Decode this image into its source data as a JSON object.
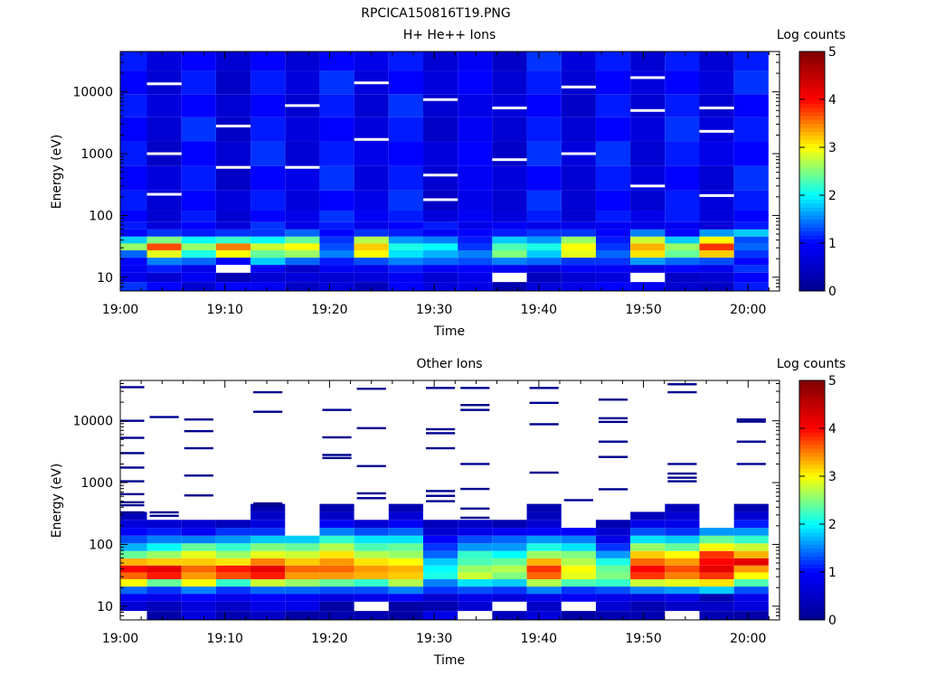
{
  "figure_title": "RPCICA150816T19.PNG",
  "colormap": [
    "#00008f",
    "#0000ff",
    "#00ffff",
    "#ffff00",
    "#ff0000",
    "#800000"
  ],
  "chart_data": [
    {
      "type": "heatmap",
      "title": "H+ He++ Ions",
      "xlabel": "Time",
      "ylabel": "Energy (eV)",
      "colorbar_label": "Log counts",
      "colorbar_ticks": [
        "0",
        "1",
        "2",
        "3",
        "4",
        "5"
      ],
      "clim": [
        0,
        5
      ],
      "x_ticks": [
        "19:00",
        "19:10",
        "19:20",
        "19:30",
        "19:40",
        "19:50",
        "20:00"
      ],
      "x_range_minutes": [
        0,
        63
      ],
      "y_scale": "log",
      "y_range_eV": [
        6,
        45000
      ],
      "y_ticks": [
        "10",
        "100",
        "1000",
        "10000"
      ],
      "time_columns_minutes": [
        0.9,
        4.2,
        7.5,
        10.8,
        14.1,
        17.4,
        20.7,
        24.0,
        27.3,
        30.6,
        33.9,
        37.2,
        40.5,
        43.8,
        47.1,
        50.4,
        53.7,
        57.0,
        60.3
      ],
      "energy_bins_eV": [
        7,
        10,
        14,
        18,
        24,
        31,
        40,
        52,
        68,
        90,
        160,
        400,
        1000,
        2500,
        6000,
        14000,
        35000
      ],
      "log_counts": [
        [
          1.2,
          1.0,
          0.6,
          1.0,
          0.9,
          0.5,
          0.7,
          0.4,
          1.0,
          0.7,
          0.8,
          0.3,
          0.7,
          0.8,
          1.0,
          0.9,
          0.6,
          0.5,
          1.1
        ],
        [
          0.8,
          0.6,
          0.9,
          0.3,
          0.6,
          0.7,
          0.6,
          0.7,
          0.9,
          0.6,
          0.8,
          null,
          0.4,
          0.6,
          0.7,
          null,
          0.5,
          0.6,
          1.0
        ],
        [
          0.9,
          1.1,
          0.8,
          null,
          0.9,
          0.5,
          0.9,
          0.8,
          1.1,
          0.9,
          1.0,
          0.9,
          0.7,
          0.9,
          0.9,
          0.8,
          1.0,
          0.8,
          1.2
        ],
        [
          1.0,
          1.5,
          1.4,
          1.0,
          1.8,
          1.4,
          1.1,
          1.3,
          1.5,
          1.4,
          1.3,
          1.5,
          1.4,
          1.2,
          1.2,
          1.6,
          1.4,
          1.3,
          1.0
        ],
        [
          1.4,
          2.9,
          2.1,
          3.0,
          2.4,
          2.6,
          1.5,
          3.0,
          1.9,
          1.7,
          1.5,
          2.5,
          1.8,
          2.9,
          1.4,
          3.1,
          2.4,
          3.2,
          1.2
        ],
        [
          2.6,
          3.7,
          2.6,
          3.5,
          2.8,
          3.0,
          1.3,
          3.2,
          2.1,
          2.0,
          1.2,
          2.3,
          2.1,
          3.0,
          1.2,
          3.3,
          2.6,
          3.8,
          1.4
        ],
        [
          1.8,
          2.5,
          2.0,
          2.2,
          2.0,
          2.4,
          1.2,
          2.7,
          1.6,
          1.5,
          1.1,
          1.8,
          1.6,
          2.6,
          1.1,
          2.8,
          1.8,
          3.0,
          1.3
        ],
        [
          1.0,
          1.2,
          1.1,
          1.2,
          1.2,
          1.4,
          1.0,
          1.2,
          1.1,
          0.9,
          1.0,
          1.1,
          1.2,
          1.2,
          1.0,
          1.5,
          1.0,
          1.6,
          1.8
        ],
        [
          1.1,
          0.7,
          1.0,
          0.7,
          1.2,
          0.8,
          1.1,
          0.8,
          1.0,
          1.1,
          0.8,
          0.9,
          0.8,
          0.8,
          0.9,
          0.8,
          0.9,
          0.7,
          1.1
        ],
        [
          1.0,
          0.6,
          1.1,
          0.6,
          1.0,
          0.8,
          1.2,
          0.9,
          1.1,
          0.7,
          0.9,
          0.7,
          1.1,
          0.6,
          1.1,
          0.8,
          1.1,
          0.7,
          1.0
        ],
        [
          1.1,
          0.6,
          1.0,
          0.7,
          1.1,
          0.7,
          1.0,
          0.8,
          1.2,
          0.5,
          0.8,
          0.6,
          1.2,
          0.6,
          1.0,
          0.6,
          1.1,
          0.7,
          1.1
        ],
        [
          1.0,
          0.7,
          1.1,
          0.5,
          1.0,
          0.8,
          1.2,
          0.7,
          1.1,
          0.6,
          0.9,
          0.7,
          1.0,
          0.6,
          1.1,
          0.7,
          1.0,
          0.6,
          1.2
        ],
        [
          1.1,
          0.5,
          1.0,
          0.6,
          1.2,
          0.6,
          1.1,
          0.8,
          1.0,
          0.7,
          1.0,
          0.5,
          1.2,
          0.7,
          1.2,
          0.6,
          1.1,
          0.8,
          1.0
        ],
        [
          1.0,
          0.6,
          1.2,
          0.5,
          1.1,
          0.7,
          1.0,
          0.7,
          1.1,
          0.5,
          0.9,
          0.6,
          1.1,
          0.6,
          1.0,
          0.7,
          1.2,
          0.7,
          1.1
        ],
        [
          1.1,
          0.7,
          1.0,
          0.6,
          1.0,
          0.6,
          1.1,
          0.6,
          1.2,
          0.6,
          0.8,
          0.7,
          1.0,
          0.5,
          1.1,
          0.6,
          1.1,
          0.6,
          1.0
        ],
        [
          1.0,
          0.6,
          1.1,
          0.5,
          1.1,
          0.7,
          1.2,
          0.7,
          1.0,
          0.7,
          1.0,
          0.6,
          1.1,
          0.6,
          1.0,
          0.7,
          1.0,
          0.7,
          1.2
        ],
        [
          1.1,
          0.7,
          1.0,
          0.6,
          1.0,
          0.6,
          1.0,
          0.8,
          1.1,
          0.6,
          0.9,
          0.5,
          1.2,
          0.7,
          1.1,
          0.6,
          1.1,
          0.6,
          1.1
        ]
      ],
      "white_gaps": [
        {
          "col": 1,
          "energy_eV": 1000
        },
        {
          "col": 1,
          "energy_eV": 13500
        },
        {
          "col": 1,
          "energy_eV": 220
        },
        {
          "col": 3,
          "energy_eV": 2800
        },
        {
          "col": 3,
          "energy_eV": 600
        },
        {
          "col": 5,
          "energy_eV": 6000
        },
        {
          "col": 5,
          "energy_eV": 600
        },
        {
          "col": 7,
          "energy_eV": 1700
        },
        {
          "col": 7,
          "energy_eV": 14000
        },
        {
          "col": 9,
          "energy_eV": 7500
        },
        {
          "col": 9,
          "energy_eV": 450
        },
        {
          "col": 9,
          "energy_eV": 180
        },
        {
          "col": 11,
          "energy_eV": 5500
        },
        {
          "col": 11,
          "energy_eV": 800
        },
        {
          "col": 13,
          "energy_eV": 12000
        },
        {
          "col": 13,
          "energy_eV": 1000
        },
        {
          "col": 15,
          "energy_eV": 17000
        },
        {
          "col": 15,
          "energy_eV": 5000
        },
        {
          "col": 15,
          "energy_eV": 300
        },
        {
          "col": 17,
          "energy_eV": 5500
        },
        {
          "col": 17,
          "energy_eV": 2300
        },
        {
          "col": 17,
          "energy_eV": 210
        }
      ]
    },
    {
      "type": "heatmap",
      "title": "Other Ions",
      "xlabel": "Time",
      "ylabel": "Energy (eV)",
      "colorbar_label": "Log counts",
      "colorbar_ticks": [
        "0",
        "1",
        "2",
        "3",
        "4",
        "5"
      ],
      "clim": [
        0,
        5
      ],
      "x_ticks": [
        "19:00",
        "19:10",
        "19:20",
        "19:30",
        "19:40",
        "19:50",
        "20:00"
      ],
      "x_range_minutes": [
        0,
        63
      ],
      "y_scale": "log",
      "y_range_eV": [
        6,
        45000
      ],
      "y_ticks": [
        "10",
        "100",
        "1000",
        "10000"
      ],
      "time_columns_minutes": [
        0.9,
        4.2,
        7.5,
        10.8,
        14.1,
        17.4,
        20.7,
        24.0,
        27.3,
        30.6,
        33.9,
        37.2,
        40.5,
        43.8,
        47.1,
        50.4,
        53.7,
        57.0,
        60.3
      ],
      "energy_bins_eV": [
        7,
        10,
        14,
        18,
        24,
        31,
        40,
        52,
        68,
        90,
        120,
        160,
        215,
        290,
        390
      ],
      "log_counts": [
        [
          null,
          0.2,
          0.7,
          0.3,
          0.5,
          0.2,
          0.3,
          0.3,
          0.2,
          0.8,
          null,
          0.4,
          0.7,
          0.2,
          0.3,
          0.3,
          null,
          0.3,
          0.2
        ],
        [
          0.6,
          0.4,
          0.7,
          0.5,
          0.8,
          0.8,
          0.2,
          null,
          0.2,
          0.3,
          0.6,
          null,
          0.5,
          null,
          0.6,
          0.3,
          0.5,
          0.5,
          0.7
        ],
        [
          0.9,
          0.8,
          1.0,
          0.8,
          1.0,
          0.9,
          0.7,
          0.8,
          0.9,
          0.6,
          0.8,
          0.7,
          0.8,
          0.9,
          0.8,
          0.7,
          0.8,
          0.3,
          0.8
        ],
        [
          1.4,
          1.2,
          1.5,
          1.2,
          1.4,
          1.4,
          1.3,
          1.3,
          1.5,
          1.2,
          1.3,
          1.2,
          1.5,
          1.2,
          1.3,
          1.5,
          1.6,
          1.8,
          1.3
        ],
        [
          3.0,
          2.4,
          3.0,
          2.2,
          2.8,
          2.6,
          2.4,
          2.2,
          2.7,
          1.5,
          1.9,
          1.8,
          2.7,
          2.3,
          2.2,
          2.8,
          2.9,
          3.1,
          2.3
        ],
        [
          3.6,
          3.9,
          3.4,
          3.7,
          3.9,
          3.4,
          3.4,
          3.3,
          3.2,
          2.1,
          2.8,
          2.5,
          3.6,
          2.9,
          2.5,
          3.8,
          3.5,
          3.8,
          3.0
        ],
        [
          4.0,
          4.2,
          3.6,
          3.9,
          4.2,
          3.6,
          3.6,
          3.4,
          3.3,
          2.0,
          2.6,
          2.7,
          3.8,
          3.0,
          2.4,
          4.0,
          3.7,
          4.2,
          3.4
        ],
        [
          3.3,
          3.2,
          3.2,
          3.1,
          3.5,
          3.2,
          3.4,
          3.1,
          3.0,
          1.8,
          2.3,
          2.4,
          3.3,
          2.7,
          2.1,
          3.6,
          3.4,
          4.0,
          4.2
        ],
        [
          2.4,
          2.6,
          2.9,
          2.6,
          2.9,
          2.8,
          3.1,
          2.7,
          2.6,
          1.4,
          2.2,
          2.0,
          2.6,
          2.5,
          1.6,
          3.2,
          3.0,
          3.8,
          3.3
        ],
        [
          1.7,
          2.0,
          2.4,
          2.2,
          2.5,
          2.4,
          2.7,
          2.3,
          2.4,
          1.2,
          1.6,
          1.6,
          2.1,
          1.9,
          1.2,
          2.6,
          2.4,
          3.0,
          2.8
        ],
        [
          1.3,
          1.5,
          1.5,
          1.6,
          1.8,
          1.8,
          2.2,
          1.9,
          1.9,
          1.0,
          1.3,
          1.4,
          1.6,
          1.5,
          0.8,
          1.9,
          1.8,
          2.4,
          2.2
        ],
        [
          1.0,
          1.1,
          0.9,
          1.2,
          1.2,
          null,
          1.5,
          1.3,
          1.4,
          0.6,
          0.8,
          0.9,
          1.0,
          1.0,
          0.6,
          1.3,
          1.2,
          1.6,
          1.6
        ],
        [
          0.7,
          0.6,
          0.6,
          0.4,
          0.7,
          null,
          0.9,
          0.6,
          0.9,
          0.4,
          0.5,
          0.3,
          0.6,
          null,
          0.3,
          0.8,
          0.8,
          null,
          1.1
        ],
        [
          0.4,
          null,
          null,
          null,
          0.5,
          null,
          0.5,
          null,
          0.6,
          null,
          null,
          null,
          0.4,
          null,
          null,
          0.4,
          0.6,
          null,
          0.6
        ],
        [
          null,
          null,
          null,
          null,
          0.3,
          null,
          0.3,
          null,
          0.3,
          null,
          null,
          null,
          0.3,
          null,
          null,
          null,
          0.4,
          null,
          0.3
        ]
      ],
      "sparse_lines": [
        {
          "col": 0,
          "energies_eV": [
            35000,
            10000,
            5300,
            3000,
            1750,
            1050,
            650,
            480,
            430,
            330
          ]
        },
        {
          "col": 1,
          "energies_eV": [
            11500,
            330,
            290
          ]
        },
        {
          "col": 2,
          "energies_eV": [
            10500,
            6800,
            3600,
            1300,
            620
          ]
        },
        {
          "col": 4,
          "energies_eV": [
            29000,
            14000,
            460,
            420
          ]
        },
        {
          "col": 6,
          "energies_eV": [
            15000,
            5400,
            2800,
            2500
          ]
        },
        {
          "col": 7,
          "energies_eV": [
            33000,
            7600,
            1850,
            670,
            560
          ]
        },
        {
          "col": 9,
          "energies_eV": [
            34000,
            7300,
            6300,
            3600,
            730,
            500,
            610
          ]
        },
        {
          "col": 10,
          "energies_eV": [
            34000,
            18000,
            15000,
            2000,
            790,
            380,
            270
          ]
        },
        {
          "col": 12,
          "energies_eV": [
            34000,
            19500,
            8800,
            1450
          ]
        },
        {
          "col": 13,
          "energies_eV": [
            520
          ]
        },
        {
          "col": 14,
          "energies_eV": [
            22000,
            11000,
            9600,
            4600,
            2600,
            780
          ]
        },
        {
          "col": 16,
          "energies_eV": [
            39000,
            29000,
            2000,
            1400,
            1200,
            1050
          ]
        },
        {
          "col": 18,
          "energies_eV": [
            10500,
            9700,
            4600,
            2000
          ]
        }
      ]
    }
  ]
}
